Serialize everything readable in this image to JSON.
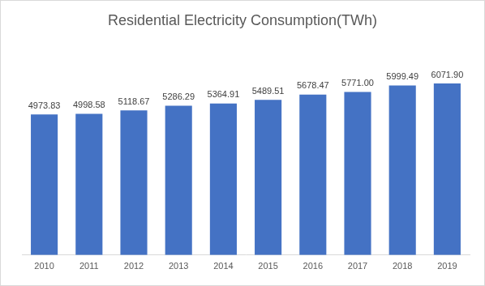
{
  "chart_data": {
    "type": "bar",
    "title": "Residential Electricity Consumption(TWh)",
    "categories": [
      "2010",
      "2011",
      "2012",
      "2013",
      "2014",
      "2015",
      "2016",
      "2017",
      "2018",
      "2019"
    ],
    "values": [
      4973.83,
      4998.58,
      5118.67,
      5286.29,
      5364.91,
      5489.51,
      5678.47,
      5771.0,
      5999.49,
      6071.9
    ],
    "value_labels": [
      "4973.83",
      "4998.58",
      "5118.67",
      "5286.29",
      "5364.91",
      "5489.51",
      "5678.47",
      "5771.00",
      "5999.49",
      "6071.90"
    ],
    "color": "#4472c4",
    "ylim": [
      0,
      7000
    ],
    "grid": false,
    "data_labels": true,
    "tick_labels": "x"
  }
}
